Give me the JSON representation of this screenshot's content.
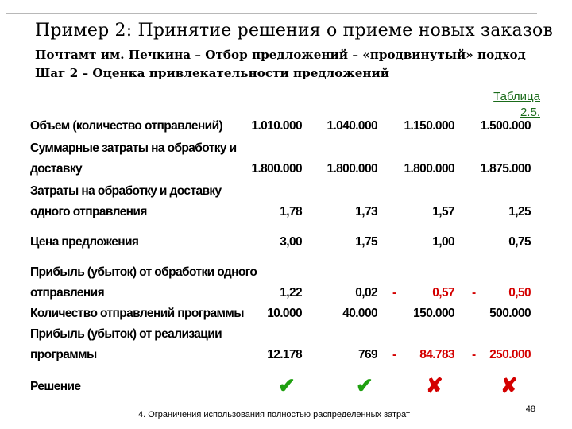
{
  "title": "Пример 2: Принятие решения о приеме новых заказов",
  "subtitle_line1": "Почтамт им. Печкина – Отбор предложений – «продвинутый» подход",
  "subtitle_line2": "Шаг 2 – Оценка привлекательности предложений",
  "table_caption": {
    "line1": "Таблица",
    "line2": "2.5."
  },
  "rows": [
    {
      "label1": "Объем (количество отправлений)",
      "values": [
        "1.010.000",
        "1.040.000",
        "1.150.000",
        "1.500.000"
      ]
    },
    {
      "label1": "Суммарные затраты на обработку и",
      "label2": "доставку",
      "values": [
        "1.800.000",
        "1.800.000",
        "1.800.000",
        "1.875.000"
      ]
    },
    {
      "label1": "Затраты на обработку и доставку",
      "label2": "одного отправления",
      "values": [
        "1,78",
        "1,73",
        "1,57",
        "1,25"
      ]
    },
    {
      "label1": "Цена предложения",
      "values": [
        "3,00",
        "1,75",
        "1,00",
        "0,75"
      ]
    },
    {
      "label1": "Прибыль (убыток) от обработки одного",
      "label2": "отправления",
      "values": [
        "1,22",
        "0,02",
        "0,57",
        "0,50"
      ],
      "minus": "-"
    },
    {
      "label1": "Количество отправлений программы",
      "values": [
        "10.000",
        "40.000",
        "150.000",
        "500.000"
      ]
    },
    {
      "label1": "Прибыль (убыток) от реализации",
      "label2": "программы",
      "values": [
        "12.178",
        "769",
        "84.783",
        "250.000"
      ],
      "minus": "-"
    },
    {
      "label1": "Решение",
      "marks": [
        "check",
        "check",
        "cross",
        "cross"
      ]
    }
  ],
  "icons": {
    "check": "✔",
    "cross": "✘"
  },
  "colors": {
    "caption": "#1a6b1a",
    "negative": "#d40000",
    "accept": "#1fa010",
    "reject": "#d40000"
  },
  "footer_text": "4. Ограничения использования полностью распределенных затрат",
  "page_number": "48"
}
